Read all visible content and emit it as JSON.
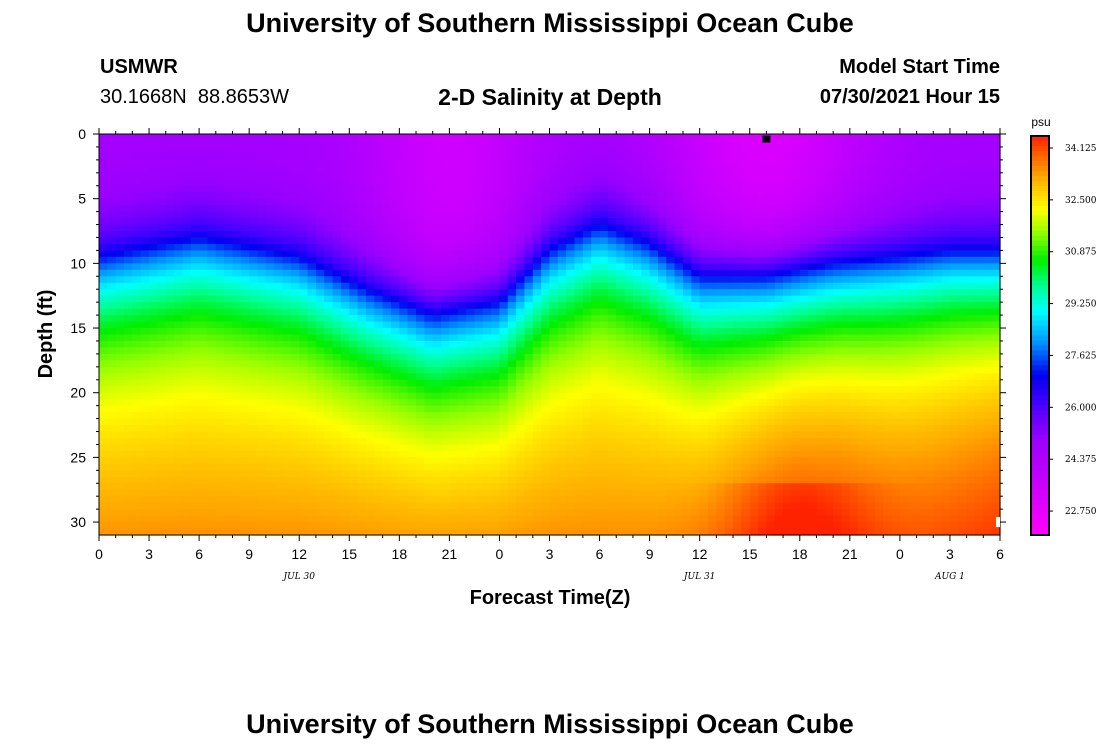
{
  "header": {
    "title": "University of Southern Mississippi Ocean Cube",
    "station": "USMWR",
    "coords": "30.1668N  88.8653W",
    "subtitle": "2-D Salinity at Depth",
    "start_label": "Model Start Time",
    "start_value": "07/30/2021 Hour 15"
  },
  "footer": {
    "title": "University of Southern Mississippi Ocean Cube"
  },
  "chart_data": {
    "type": "heatmap",
    "title": "2-D Salinity at Depth",
    "xlabel": "Forecast Time(Z)",
    "ylabel": "Depth (ft)",
    "x_tick_labels": [
      "0",
      "3",
      "6",
      "9",
      "12",
      "15",
      "18",
      "21",
      "0",
      "3",
      "6",
      "9",
      "12",
      "15",
      "18",
      "21",
      "0",
      "3",
      "6"
    ],
    "x_range_hours": [
      0,
      54
    ],
    "date_labels": [
      {
        "label": "JUL 30",
        "hour": 12
      },
      {
        "label": "JUL 31",
        "hour": 36
      },
      {
        "label": "AUG 1",
        "hour": 51
      }
    ],
    "y_ticks": [
      0,
      5,
      10,
      15,
      20,
      25,
      30
    ],
    "ylim": [
      0,
      31
    ],
    "y_inverted": true,
    "colorbar": {
      "unit": "psu",
      "tick_labels": [
        "34.125",
        "32.500",
        "30.875",
        "29.250",
        "27.625",
        "26.000",
        "24.375",
        "22.750"
      ],
      "range": [
        22.0,
        34.5
      ],
      "colors": [
        {
          "value": 22.0,
          "color": "#ff00ff"
        },
        {
          "value": 23.5,
          "color": "#cc00ff"
        },
        {
          "value": 25.0,
          "color": "#9900ff"
        },
        {
          "value": 26.2,
          "color": "#4000ff"
        },
        {
          "value": 27.0,
          "color": "#0000ee"
        },
        {
          "value": 28.0,
          "color": "#0090ff"
        },
        {
          "value": 29.0,
          "color": "#00ffff"
        },
        {
          "value": 29.8,
          "color": "#00ff90"
        },
        {
          "value": 30.6,
          "color": "#00ee00"
        },
        {
          "value": 31.5,
          "color": "#99ff00"
        },
        {
          "value": 32.2,
          "color": "#ffff00"
        },
        {
          "value": 33.2,
          "color": "#ffaa00"
        },
        {
          "value": 34.5,
          "color": "#ff2200"
        }
      ]
    },
    "surface_salinity_psu": 24.6,
    "deep_salinity_psu": 33.5,
    "halocline_depth_ft": {
      "hours": [
        0,
        6,
        12,
        16,
        20,
        24,
        27,
        30,
        33,
        36,
        40,
        44,
        48,
        51,
        54
      ],
      "depths": [
        9.5,
        8.0,
        9.5,
        12.0,
        14.0,
        13.0,
        9.0,
        7.0,
        8.5,
        11.0,
        11.0,
        10.0,
        9.5,
        9.0,
        9.0
      ]
    },
    "markers": [
      {
        "hour": 40,
        "depth_ft": 0.2
      },
      {
        "hour": 54,
        "depth_ft": 30
      }
    ]
  }
}
